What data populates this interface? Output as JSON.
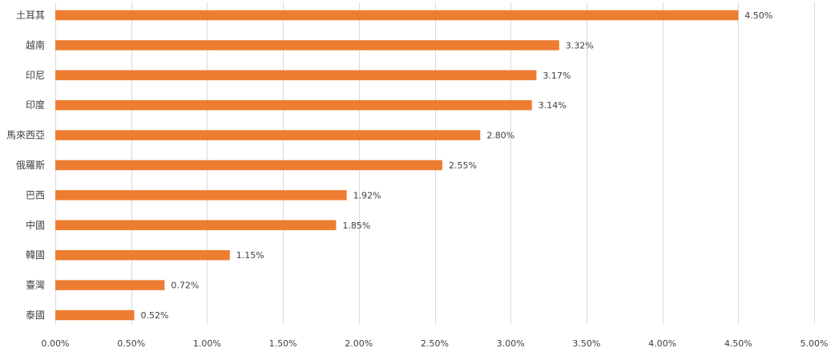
{
  "chart_data": {
    "type": "bar",
    "orientation": "horizontal",
    "categories": [
      "土耳其",
      "越南",
      "印尼",
      "印度",
      "馬來西亞",
      "俄羅斯",
      "巴西",
      "中國",
      "韓國",
      "臺灣",
      "泰國"
    ],
    "values": [
      0.045,
      0.0332,
      0.0317,
      0.0314,
      0.028,
      0.0255,
      0.0192,
      0.0185,
      0.0115,
      0.0072,
      0.0052
    ],
    "data_labels": [
      "4.50%",
      "3.32%",
      "3.17%",
      "3.14%",
      "2.80%",
      "2.55%",
      "1.92%",
      "1.85%",
      "1.15%",
      "0.72%",
      "0.52%"
    ],
    "xlim": [
      0,
      0.05
    ],
    "x_ticks": [
      0,
      0.005,
      0.01,
      0.015,
      0.02,
      0.025,
      0.03,
      0.035,
      0.04,
      0.045,
      0.05
    ],
    "x_tick_labels": [
      "0.00%",
      "0.50%",
      "1.00%",
      "1.50%",
      "2.00%",
      "2.50%",
      "3.00%",
      "3.50%",
      "4.00%",
      "4.50%",
      "5.00%"
    ],
    "grid": "vertical",
    "bar_color": "#ED7D31",
    "gridline_color": "#D9D9D9",
    "title": "",
    "xlabel": "",
    "ylabel": ""
  }
}
